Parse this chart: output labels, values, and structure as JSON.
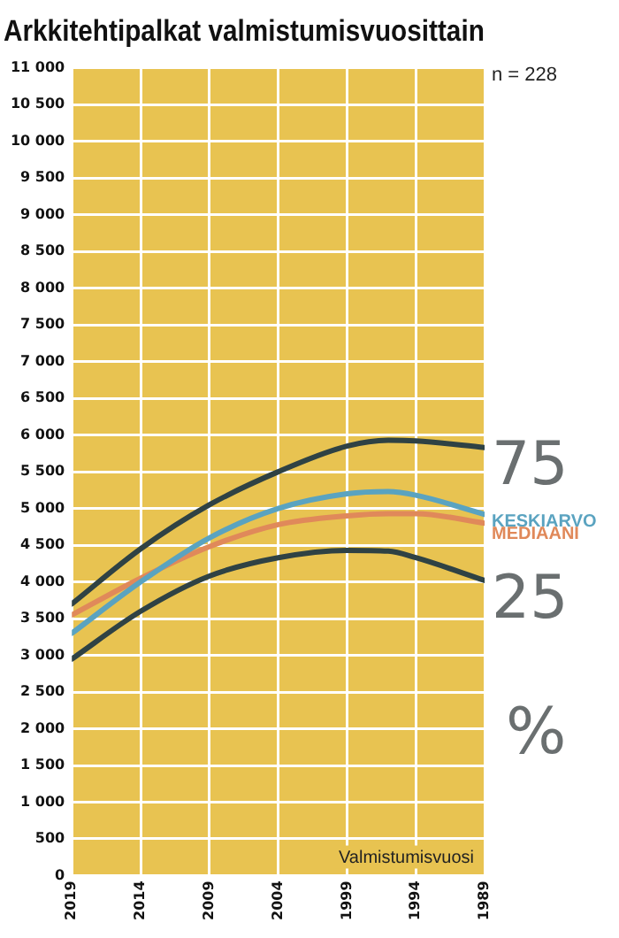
{
  "chart_data": {
    "type": "line",
    "title": "Arkkitehtipalkat valmistumisvuosittain",
    "xlabel": "Valmistumisvuosi",
    "annotations": [
      "n = 228",
      "%"
    ],
    "xlim": [
      2019,
      1989
    ],
    "xticks": [
      2019,
      2014,
      2009,
      2004,
      1999,
      1994,
      1989
    ],
    "ylim": [
      0,
      11000
    ],
    "yticks": [
      0,
      500,
      {
        "value": 1000,
        "label": "1 000"
      },
      {
        "value": 1500,
        "label": "1 500"
      },
      {
        "value": 2000,
        "label": "2 000"
      },
      {
        "value": 2500,
        "label": "2 500"
      },
      {
        "value": 3000,
        "label": "3 000"
      },
      {
        "value": 3500,
        "label": "3 500"
      },
      {
        "value": 4000,
        "label": "4 000"
      },
      {
        "value": 4500,
        "label": "4 500"
      },
      {
        "value": 5000,
        "label": "5 000"
      },
      {
        "value": 5500,
        "label": "5 500"
      },
      {
        "value": 6000,
        "label": "6 000"
      },
      {
        "value": 6500,
        "label": "6 500"
      },
      {
        "value": 7000,
        "label": "7 000"
      },
      {
        "value": 7500,
        "label": "7 500"
      },
      {
        "value": 8000,
        "label": "8 000"
      },
      {
        "value": 8500,
        "label": "8 500"
      },
      {
        "value": 9000,
        "label": "9 000"
      },
      {
        "value": 9500,
        "label": "9 500"
      },
      {
        "value": 10000,
        "label": "10 000"
      },
      {
        "value": 10500,
        "label": "10 500"
      },
      {
        "value": 11000,
        "label": "11 000"
      }
    ],
    "x": [
      2019,
      2014,
      2009,
      2004,
      1999,
      1996,
      1994,
      1989
    ],
    "grid": true,
    "marker": "none",
    "line_style": "solid",
    "series": [
      {
        "name": "75",
        "color": "#2f4244",
        "values": [
          3700,
          4450,
          5050,
          5500,
          5850,
          5930,
          5920,
          5830
        ]
      },
      {
        "name": "KESKIARVO",
        "color": "#5aa3c0",
        "values": [
          3300,
          4000,
          4600,
          5000,
          5200,
          5230,
          5180,
          4920
        ]
      },
      {
        "name": "MEDIAANI",
        "color": "#e0895a",
        "values": [
          3550,
          4050,
          4480,
          4780,
          4900,
          4930,
          4930,
          4800
        ]
      },
      {
        "name": "25",
        "color": "#2f4244",
        "values": [
          2950,
          3600,
          4080,
          4330,
          4430,
          4420,
          4330,
          4020
        ]
      }
    ]
  }
}
